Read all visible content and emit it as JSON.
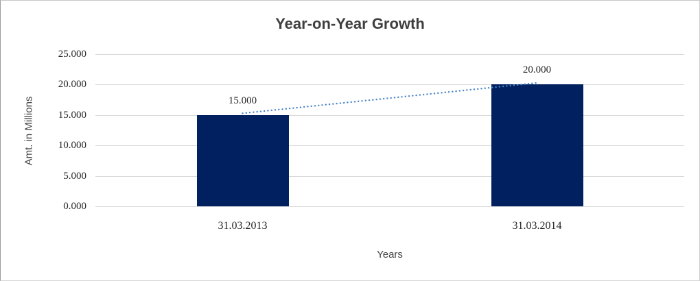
{
  "chart_data": {
    "type": "bar",
    "title": "Year-on-Year Growth",
    "xlabel": "Years",
    "ylabel": "Amt. in Millions",
    "categories": [
      "31.03.2013",
      "31.03.2014"
    ],
    "values": [
      15,
      20
    ],
    "data_labels": [
      "15.000",
      "20.000"
    ],
    "y_ticks": [
      0,
      5,
      10,
      15,
      20,
      25
    ],
    "y_tick_labels": [
      "0.000",
      "5.000",
      "10.000",
      "15.000",
      "20.000",
      "25.000"
    ],
    "ylim": [
      0,
      25
    ],
    "grid": true,
    "legend": "none",
    "bar_color": "#002060",
    "gridline_color": "#d9d9d9",
    "trendline": {
      "type": "linear",
      "style": "dotted",
      "color": "#4a86c8",
      "from_value": 15,
      "to_value": 20
    }
  }
}
